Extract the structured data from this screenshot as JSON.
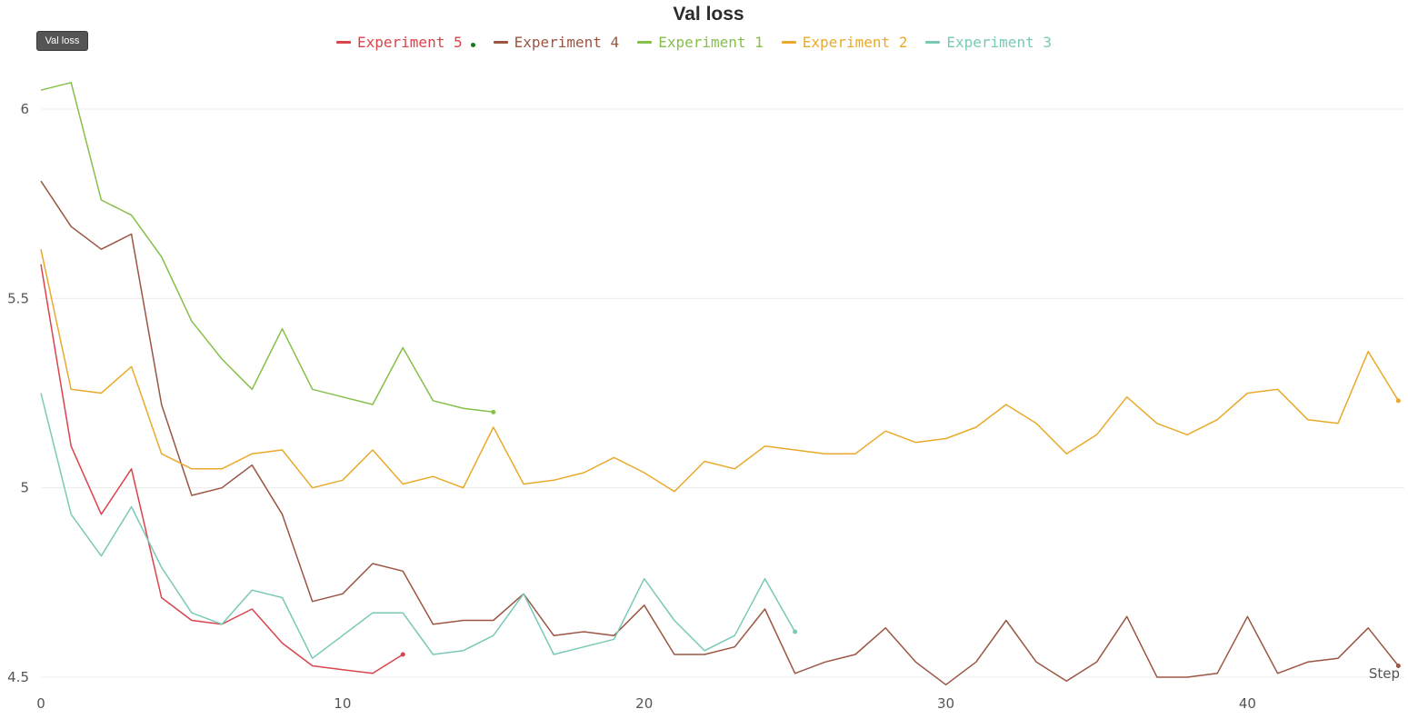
{
  "chart_data": {
    "type": "line",
    "title": "Val loss",
    "tooltip": "Val loss",
    "xlabel": "Step",
    "ylabel": "",
    "xlim": [
      0,
      45.2
    ],
    "ylim": [
      4.5,
      6.12
    ],
    "x_ticks": [
      0,
      10,
      20,
      30,
      40
    ],
    "y_ticks": [
      4.5,
      5,
      5.5,
      6
    ],
    "y_tick_labels": [
      "4.5",
      "5",
      "5.5",
      "6"
    ],
    "grid": "horizontal",
    "legend_position": "top-center",
    "series": [
      {
        "name": "Experiment 5",
        "color": "#d9444c",
        "values": [
          5.59,
          5.11,
          4.93,
          5.05,
          4.71,
          4.65,
          4.64,
          4.68,
          4.59,
          4.53,
          4.52,
          4.51,
          4.56
        ]
      },
      {
        "name": "Experiment 4",
        "color": "#9b5643",
        "values": [
          5.81,
          5.69,
          5.63,
          5.67,
          5.22,
          4.98,
          5.0,
          5.06,
          4.93,
          4.7,
          4.72,
          4.8,
          4.78,
          4.64,
          4.65,
          4.65,
          4.72,
          4.61,
          4.62,
          4.61,
          4.69,
          4.56,
          4.56,
          4.58,
          4.68,
          4.51,
          4.54,
          4.56,
          4.63,
          4.54,
          4.48,
          4.54,
          4.65,
          4.54,
          4.49,
          4.54,
          4.66,
          4.5,
          4.5,
          4.51,
          4.66,
          4.51,
          4.54,
          4.55,
          4.63,
          4.53
        ]
      },
      {
        "name": "Experiment 1",
        "color": "#86bf4a",
        "values": [
          6.05,
          6.07,
          5.76,
          5.72,
          5.61,
          5.44,
          5.34,
          5.26,
          5.42,
          5.26,
          5.24,
          5.22,
          5.37,
          5.23,
          5.21,
          5.2
        ]
      },
      {
        "name": "Experiment 2",
        "color": "#e9aa2c",
        "values": [
          5.63,
          5.26,
          5.25,
          5.32,
          5.09,
          5.05,
          5.05,
          5.09,
          5.1,
          5.0,
          5.02,
          5.1,
          5.01,
          5.03,
          5.0,
          5.16,
          5.01,
          5.02,
          5.04,
          5.08,
          5.04,
          4.99,
          5.07,
          5.05,
          5.11,
          5.1,
          5.09,
          5.09,
          5.15,
          5.12,
          5.13,
          5.16,
          5.22,
          5.17,
          5.09,
          5.14,
          5.24,
          5.17,
          5.14,
          5.18,
          5.25,
          5.26,
          5.18,
          5.17,
          5.36,
          5.23
        ]
      },
      {
        "name": "Experiment 3",
        "color": "#79c9b6",
        "values": [
          5.25,
          4.93,
          4.82,
          4.95,
          4.79,
          4.67,
          4.64,
          4.73,
          4.71,
          4.55,
          4.61,
          4.67,
          4.67,
          4.56,
          4.57,
          4.61,
          4.72,
          4.56,
          4.58,
          4.6,
          4.76,
          4.65,
          4.57,
          4.61,
          4.76,
          4.62
        ]
      }
    ]
  }
}
